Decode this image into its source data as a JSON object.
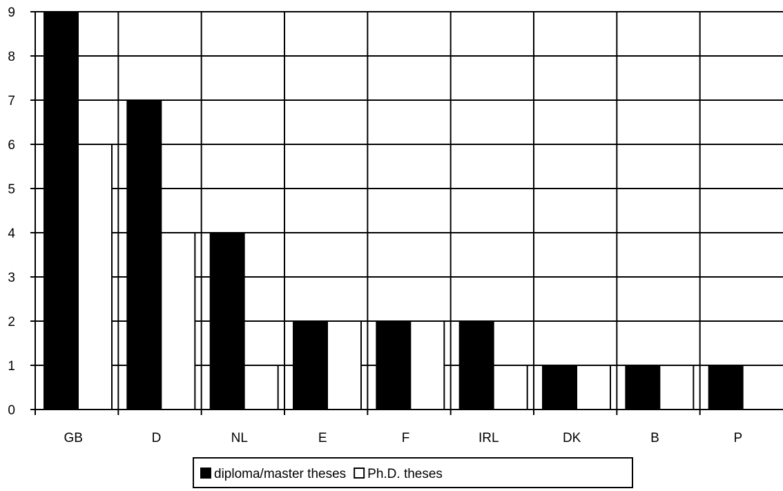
{
  "chart_data": {
    "type": "bar",
    "categories": [
      "GB",
      "D",
      "NL",
      "E",
      "F",
      "IRL",
      "DK",
      "B",
      "P"
    ],
    "series": [
      {
        "name": "diploma/master theses",
        "values": [
          9,
          7,
          4,
          2,
          2,
          2,
          1,
          1,
          1
        ],
        "color": "#000000"
      },
      {
        "name": "Ph.D. theses",
        "values": [
          6,
          4,
          1,
          2,
          2,
          1,
          1,
          1,
          0
        ],
        "color": "#ffffff"
      }
    ],
    "yticks": [
      0,
      1,
      2,
      3,
      4,
      5,
      6,
      7,
      8,
      9
    ],
    "ylim": [
      0,
      9
    ],
    "grid": true,
    "legend": "bottom-center"
  }
}
